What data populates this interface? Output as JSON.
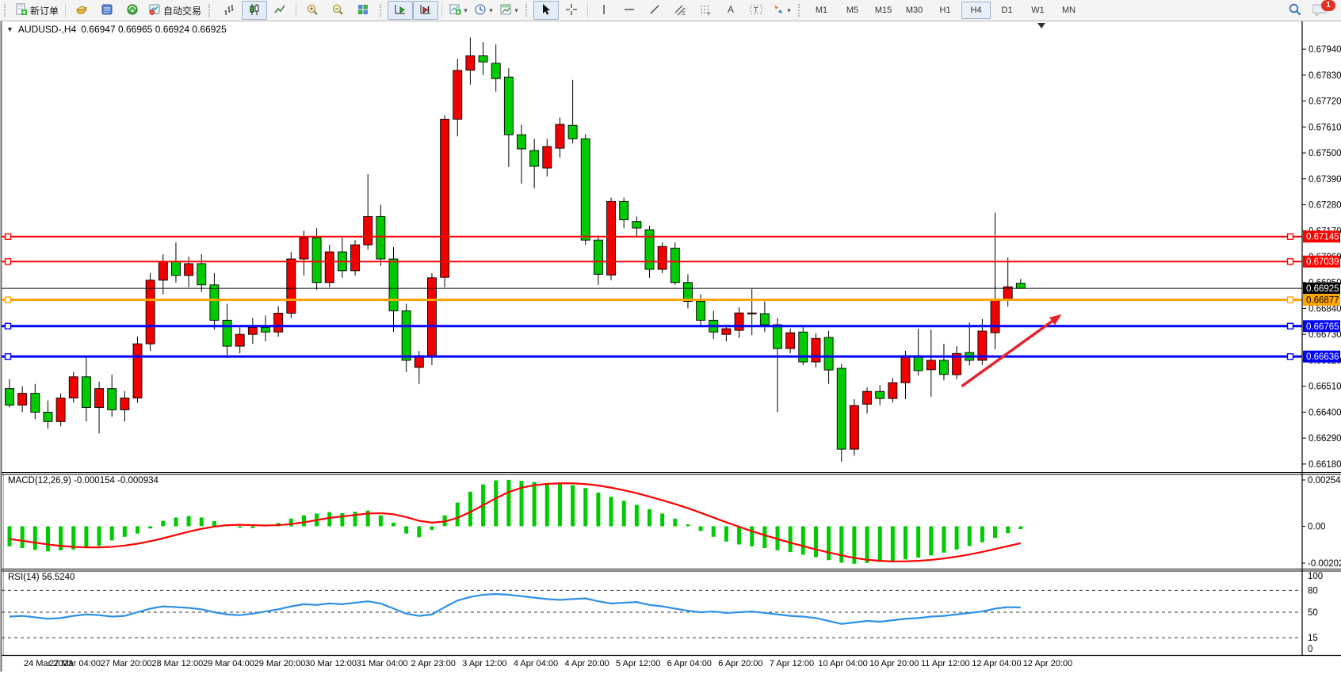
{
  "toolbar": {
    "new_order_label": "新订单",
    "autotrading_label": "自动交易",
    "timeframes": [
      "M1",
      "M5",
      "M15",
      "M30",
      "H1",
      "H4",
      "D1",
      "W1",
      "MN"
    ],
    "active_timeframe": "H4",
    "notification_count": "1"
  },
  "chart_header": {
    "symbol_title": "AUDUSD-,H4",
    "ohlc_text": "0.66947 0.66965 0.66924 0.66925"
  },
  "chart_data": {
    "type": "candlestick",
    "symbol": "AUDUSD",
    "timeframe": "H4",
    "title": "AUDUSD-,H4 0.66947 0.66965 0.66924 0.66925",
    "price_axis": {
      "ticks": [
        "0.67940",
        "0.67830",
        "0.67720",
        "0.67610",
        "0.67500",
        "0.67390",
        "0.67280",
        "0.67170",
        "0.67060",
        "0.66950",
        "0.66840",
        "0.66730",
        "0.66620",
        "0.66510",
        "0.66400",
        "0.66290",
        "0.66180"
      ],
      "visible_max": 0.68058,
      "visible_min": 0.66146
    },
    "x_labels": [
      "24 Mar 2023",
      "27 Mar 04:00",
      "27 Mar 20:00",
      "28 Mar 12:00",
      "29 Mar 04:00",
      "29 Mar 20:00",
      "30 Mar 12:00",
      "31 Mar 04:00",
      "2 Apr 23:00",
      "3 Apr 12:00",
      "4 Apr 04:00",
      "4 Apr 20:00",
      "5 Apr 12:00",
      "6 Apr 04:00",
      "6 Apr 20:00",
      "7 Apr 12:00",
      "10 Apr 04:00",
      "10 Apr 20:00",
      "11 Apr 12:00",
      "12 Apr 04:00",
      "12 Apr 20:00"
    ],
    "colors": {
      "bull_body": "#f20000",
      "bear_body": "#00cb00",
      "outline": "#000000",
      "hline_red": "#ff0000",
      "hline_blue": "#0000ff",
      "hline_orange": "#ffa500",
      "current_line": "#000000",
      "macd_histogram": "#00cb00",
      "macd_signal": "#ff0000",
      "rsi_line": "#2e8fe8",
      "arrow": "#e32330"
    },
    "h_lines": [
      {
        "price": 0.67145,
        "label": "0.67145",
        "color": "#ff0000",
        "width": 2,
        "badge_fg": "#ffffff",
        "markers": true
      },
      {
        "price": 0.67039,
        "label": "0.67039",
        "color": "#ff0000",
        "width": 2,
        "badge_fg": "#ffffff",
        "markers": true
      },
      {
        "price": 0.66925,
        "label": "0.66925",
        "color": "#000000",
        "width": 1,
        "badge_fg": "#ffffff",
        "markers": false
      },
      {
        "price": 0.66877,
        "label": "0.66877",
        "color": "#ffa500",
        "width": 3,
        "badge_fg": "#000000",
        "markers": true
      },
      {
        "price": 0.66765,
        "label": "0.66765",
        "color": "#0000ff",
        "width": 3,
        "badge_fg": "#ffffff",
        "markers": true
      },
      {
        "price": 0.66636,
        "label": "0.66636",
        "color": "#0000ff",
        "width": 3,
        "badge_fg": "#ffffff",
        "markers": true
      }
    ],
    "trend_arrow": {
      "start_bar": 74.4,
      "start_price": 0.6651,
      "end_bar": 82.2,
      "end_price": 0.66815
    },
    "candles": [
      [
        0.665,
        0.6654,
        0.6642,
        0.6643
      ],
      [
        0.6643,
        0.6651,
        0.664,
        0.6648
      ],
      [
        0.6648,
        0.6652,
        0.6637,
        0.664
      ],
      [
        0.664,
        0.6645,
        0.6633,
        0.6636
      ],
      [
        0.6636,
        0.6648,
        0.6634,
        0.6646
      ],
      [
        0.6646,
        0.6657,
        0.6644,
        0.6655
      ],
      [
        0.6655,
        0.6664,
        0.6636,
        0.6642
      ],
      [
        0.6642,
        0.6653,
        0.6631,
        0.665
      ],
      [
        0.665,
        0.6656,
        0.6638,
        0.6641
      ],
      [
        0.6641,
        0.6649,
        0.6636,
        0.6646
      ],
      [
        0.6646,
        0.6672,
        0.6644,
        0.6669
      ],
      [
        0.6669,
        0.6699,
        0.6666,
        0.6696
      ],
      [
        0.6696,
        0.6707,
        0.669,
        0.6704
      ],
      [
        0.6704,
        0.6712,
        0.6695,
        0.6698
      ],
      [
        0.6698,
        0.6706,
        0.6693,
        0.6703
      ],
      [
        0.6703,
        0.6707,
        0.6691,
        0.6694
      ],
      [
        0.6694,
        0.6699,
        0.6675,
        0.6679
      ],
      [
        0.6679,
        0.6686,
        0.6663,
        0.6668
      ],
      [
        0.6668,
        0.6676,
        0.6665,
        0.6673
      ],
      [
        0.6673,
        0.668,
        0.6669,
        0.6676
      ],
      [
        0.6676,
        0.6681,
        0.667,
        0.6674
      ],
      [
        0.6674,
        0.6685,
        0.6672,
        0.6682
      ],
      [
        0.6682,
        0.6708,
        0.668,
        0.6705
      ],
      [
        0.6705,
        0.6717,
        0.6698,
        0.6714
      ],
      [
        0.6714,
        0.6718,
        0.6692,
        0.6695
      ],
      [
        0.6695,
        0.6711,
        0.6693,
        0.6708
      ],
      [
        0.6708,
        0.6714,
        0.6697,
        0.67
      ],
      [
        0.67,
        0.6713,
        0.6698,
        0.6711
      ],
      [
        0.6711,
        0.6741,
        0.6709,
        0.6723
      ],
      [
        0.6723,
        0.6728,
        0.6702,
        0.6705
      ],
      [
        0.6705,
        0.671,
        0.6674,
        0.6683
      ],
      [
        0.6683,
        0.6686,
        0.6657,
        0.6662
      ],
      [
        0.6659,
        0.6666,
        0.6652,
        0.6664
      ],
      [
        0.66633,
        0.6699,
        0.666,
        0.6697
      ],
      [
        0.66972,
        0.6766,
        0.6693,
        0.67643
      ],
      [
        0.67643,
        0.679,
        0.6757,
        0.6785
      ],
      [
        0.67851,
        0.6799,
        0.6779,
        0.67912
      ],
      [
        0.67912,
        0.6797,
        0.6783,
        0.67886
      ],
      [
        0.6788,
        0.6796,
        0.6776,
        0.67815
      ],
      [
        0.67822,
        0.6786,
        0.6744,
        0.67577
      ],
      [
        0.67577,
        0.6762,
        0.6737,
        0.67517
      ],
      [
        0.6751,
        0.6756,
        0.6735,
        0.67443
      ],
      [
        0.67436,
        0.6756,
        0.674,
        0.67527
      ],
      [
        0.6752,
        0.6765,
        0.6748,
        0.67621
      ],
      [
        0.67617,
        0.6781,
        0.6754,
        0.6756
      ],
      [
        0.6756,
        0.6758,
        0.6711,
        0.6713
      ],
      [
        0.6713,
        0.6715,
        0.6694,
        0.66985
      ],
      [
        0.66982,
        0.6731,
        0.6696,
        0.67294
      ],
      [
        0.67294,
        0.6731,
        0.6718,
        0.67216
      ],
      [
        0.67209,
        0.6723,
        0.6714,
        0.67181
      ],
      [
        0.67174,
        0.6719,
        0.6697,
        0.67006
      ],
      [
        0.67006,
        0.6712,
        0.6699,
        0.67103
      ],
      [
        0.67096,
        0.6712,
        0.6694,
        0.6695
      ],
      [
        0.6695,
        0.66985,
        0.6684,
        0.6687
      ],
      [
        0.6687,
        0.669,
        0.6676,
        0.6679
      ],
      [
        0.6679,
        0.6683,
        0.6671,
        0.6674
      ],
      [
        0.6673,
        0.6677,
        0.667,
        0.66754
      ],
      [
        0.66747,
        0.66845,
        0.66715,
        0.66821
      ],
      [
        0.6682,
        0.66922,
        0.66727,
        0.66821
      ],
      [
        0.66818,
        0.6687,
        0.6674,
        0.66771
      ],
      [
        0.66771,
        0.668,
        0.664,
        0.6667
      ],
      [
        0.6667,
        0.66755,
        0.6665,
        0.66737
      ],
      [
        0.6674,
        0.6676,
        0.666,
        0.66613
      ],
      [
        0.66613,
        0.66735,
        0.6659,
        0.66713
      ],
      [
        0.66717,
        0.66745,
        0.6652,
        0.66579
      ],
      [
        0.66586,
        0.66605,
        0.6619,
        0.66243
      ],
      [
        0.66243,
        0.66455,
        0.66215,
        0.66428
      ],
      [
        0.66434,
        0.66505,
        0.66395,
        0.66488
      ],
      [
        0.66488,
        0.66515,
        0.6643,
        0.66458
      ],
      [
        0.66458,
        0.66545,
        0.6644,
        0.66525
      ],
      [
        0.66525,
        0.6666,
        0.66455,
        0.6664
      ],
      [
        0.6664,
        0.66754,
        0.66555,
        0.66576
      ],
      [
        0.6658,
        0.6675,
        0.66465,
        0.6662
      ],
      [
        0.6662,
        0.6669,
        0.66535,
        0.6656
      ],
      [
        0.66559,
        0.6668,
        0.6654,
        0.66649
      ],
      [
        0.66653,
        0.6678,
        0.66598,
        0.6662
      ],
      [
        0.6662,
        0.66795,
        0.666,
        0.66744
      ],
      [
        0.66737,
        0.67246,
        0.66666,
        0.66878
      ],
      [
        0.66878,
        0.67056,
        0.66848,
        0.66932
      ],
      [
        0.66947,
        0.66965,
        0.66924,
        0.66925
      ]
    ],
    "macd": {
      "label": "MACD(12,26,9)",
      "values_text": "-0.000154 -0.000934",
      "axis_labels": [
        "0.002545",
        "0.00",
        "-0.002026"
      ],
      "max": 0.002545,
      "min": -0.002026,
      "histogram": [
        -0.0011,
        -0.0012,
        -0.0013,
        -0.00138,
        -0.00132,
        -0.00128,
        -0.0012,
        -0.00108,
        -0.00078,
        -0.00058,
        -0.0004,
        -0.00012,
        0.0003,
        0.00048,
        0.00056,
        0.00048,
        0.00028,
        6e-05,
        -8e-05,
        -0.0001,
        4e-05,
        0.00018,
        0.00042,
        0.0006,
        0.0007,
        0.00078,
        0.00072,
        0.0008,
        0.00086,
        0.0006,
        0.0002,
        -0.0004,
        -0.0006,
        -0.0002,
        0.0006,
        0.0013,
        0.0019,
        0.0023,
        0.00252,
        0.00255,
        0.0025,
        0.00243,
        0.00237,
        0.00232,
        0.00226,
        0.0021,
        0.00185,
        0.00162,
        0.0014,
        0.00118,
        0.00094,
        0.0007,
        0.00042,
        0.0001,
        -0.00026,
        -0.00058,
        -0.00084,
        -0.001,
        -0.0011,
        -0.0012,
        -0.00132,
        -0.00142,
        -0.00156,
        -0.0017,
        -0.00186,
        -0.002,
        -0.00206,
        -0.00202,
        -0.00196,
        -0.0019,
        -0.00182,
        -0.00172,
        -0.0016,
        -0.00145,
        -0.00128,
        -0.00108,
        -0.00088,
        -0.00064,
        -0.00038,
        -0.000154
      ],
      "signal": [
        -0.0007,
        -0.0008,
        -0.0009,
        -0.001,
        -0.00108,
        -0.00113,
        -0.00116,
        -0.00116,
        -0.00113,
        -0.00106,
        -0.00096,
        -0.00082,
        -0.00066,
        -0.00048,
        -0.0003,
        -0.00014,
        -2e-05,
        6e-05,
        8e-05,
        6e-05,
        4e-05,
        6e-05,
        0.00012,
        0.00022,
        0.00034,
        0.00046,
        0.00054,
        0.00062,
        0.0007,
        0.00072,
        0.00066,
        0.0005,
        0.0003,
        0.0002,
        0.00026,
        0.00046,
        0.00078,
        0.00116,
        0.00154,
        0.00188,
        0.00212,
        0.00226,
        0.00233,
        0.00236,
        0.00236,
        0.00232,
        0.00224,
        0.00212,
        0.00198,
        0.00182,
        0.00163,
        0.00143,
        0.00122,
        0.00099,
        0.00074,
        0.00048,
        0.00022,
        -3e-05,
        -0.00027,
        -0.00049,
        -0.0007,
        -0.0009,
        -0.00109,
        -0.00127,
        -0.00144,
        -0.0016,
        -0.00174,
        -0.00184,
        -0.0019,
        -0.00193,
        -0.00193,
        -0.0019,
        -0.00185,
        -0.00177,
        -0.00167,
        -0.00155,
        -0.00141,
        -0.00125,
        -0.00109,
        -0.00093
      ]
    },
    "rsi": {
      "label": "RSI(14)",
      "value_text": "56.5240",
      "axis_labels": [
        "100",
        "80",
        "50",
        "15",
        "0"
      ],
      "levels_dashed": [
        80,
        50,
        15
      ],
      "series": [
        44,
        45,
        43,
        41,
        42,
        45,
        47,
        46,
        44,
        45,
        50,
        55,
        58,
        57,
        56,
        54,
        50,
        47,
        46,
        48,
        51,
        54,
        58,
        61,
        60,
        62,
        61,
        63,
        65,
        62,
        55,
        48,
        45,
        47,
        57,
        66,
        71,
        74,
        75,
        74,
        72,
        70,
        68,
        67,
        68,
        69,
        65,
        62,
        63,
        64,
        60,
        58,
        55,
        52,
        50,
        51,
        49,
        50,
        51,
        49,
        47,
        45,
        44,
        42,
        38,
        34,
        36,
        38,
        37,
        39,
        41,
        42,
        44,
        45,
        47,
        49,
        51,
        55,
        57,
        56.5
      ]
    }
  }
}
